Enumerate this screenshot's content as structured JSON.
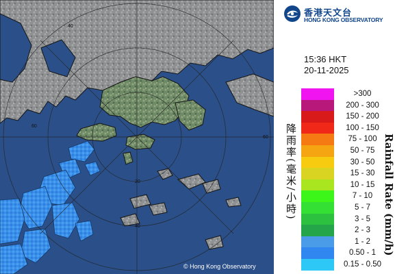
{
  "header": {
    "logo_cn": "香港天文台",
    "logo_en": "HONG KONG OBSERVATORY"
  },
  "timestamp": {
    "time": "15:36 HKT",
    "date": "20-11-2025"
  },
  "legend": {
    "title_en": "Rainfall Rate (mm/h)",
    "title_cn": "降雨率(毫米/小時)",
    "entries": [
      {
        "label": ">300",
        "color": "#f015f0"
      },
      {
        "label": "200 - 300",
        "color": "#b7187a"
      },
      {
        "label": "150 - 200",
        "color": "#d91a1a"
      },
      {
        "label": "100 - 150",
        "color": "#f02818"
      },
      {
        "label": "75 - 100",
        "color": "#f57a13"
      },
      {
        "label": "50 - 75",
        "color": "#f5a412"
      },
      {
        "label": "30 - 50",
        "color": "#f6cb10"
      },
      {
        "label": "15 - 30",
        "color": "#d9d421"
      },
      {
        "label": "10 - 15",
        "color": "#a9e61f"
      },
      {
        "label": "7 - 10",
        "color": "#3cf519"
      },
      {
        "label": "5 - 7",
        "color": "#33e033"
      },
      {
        "label": "3 - 5",
        "color": "#2cc23f"
      },
      {
        "label": "2 - 3",
        "color": "#24a54a"
      },
      {
        "label": "1 - 2",
        "color": "#4a9be8"
      },
      {
        "label": "0.50 - 1",
        "color": "#2f87ef"
      },
      {
        "label": "0.15 - 0.50",
        "color": "#2dc8f5"
      }
    ]
  },
  "map": {
    "range_ring_labels": [
      "20",
      "40",
      "60"
    ],
    "copyright": "© Hong Kong Observatory"
  }
}
